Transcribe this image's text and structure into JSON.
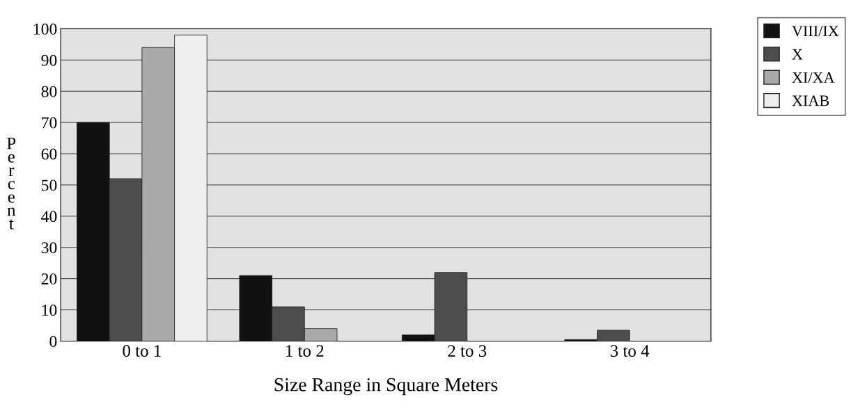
{
  "chart_data": {
    "type": "bar",
    "xlabel": "Size Range in Square Meters",
    "ylabel": "Percent",
    "categories": [
      "0 to 1",
      "1 to 2",
      "2 to 3",
      "3 to 4"
    ],
    "series": [
      {
        "name": "VIII/IX",
        "color": "#111111",
        "values": [
          70,
          21,
          2,
          0.5
        ]
      },
      {
        "name": "X",
        "color": "#4d4d4d",
        "values": [
          52,
          11,
          22,
          3.5
        ]
      },
      {
        "name": "XI/XA",
        "color": "#a9a9a9",
        "values": [
          94,
          4,
          null,
          null
        ]
      },
      {
        "name": "XIAB",
        "color": "#eeeeee",
        "values": [
          98,
          null,
          null,
          null
        ]
      }
    ],
    "ylim": [
      0,
      100
    ],
    "yticks": [
      0,
      10,
      20,
      30,
      40,
      50,
      60,
      70,
      80,
      90,
      100
    ],
    "grid": "y",
    "legend": "top right"
  }
}
